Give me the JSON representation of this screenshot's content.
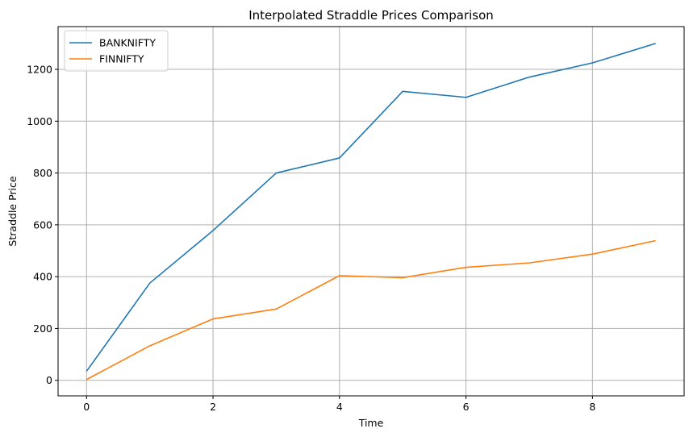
{
  "chart_data": {
    "type": "line",
    "title": "Interpolated Straddle Prices Comparison",
    "xlabel": "Time",
    "ylabel": "Straddle Price",
    "x": [
      0,
      1,
      2,
      3,
      4,
      5,
      6,
      7,
      8,
      9
    ],
    "series": [
      {
        "name": "BANKNIFTY",
        "color": "#1f77b4",
        "values": [
          35,
          375,
          578,
          800,
          858,
          1115,
          1092,
          1170,
          1225,
          1300
        ]
      },
      {
        "name": "FINNIFTY",
        "color": "#ff7f0e",
        "values": [
          3,
          133,
          237,
          275,
          404,
          396,
          436,
          453,
          487,
          539
        ]
      }
    ],
    "xlim": [
      -0.45,
      9.45
    ],
    "ylim": [
      -60,
      1365
    ],
    "xticks": [
      0,
      2,
      4,
      6,
      8
    ],
    "yticks": [
      0,
      200,
      400,
      600,
      800,
      1000,
      1200
    ],
    "grid": true,
    "legend_position": "top-left"
  }
}
